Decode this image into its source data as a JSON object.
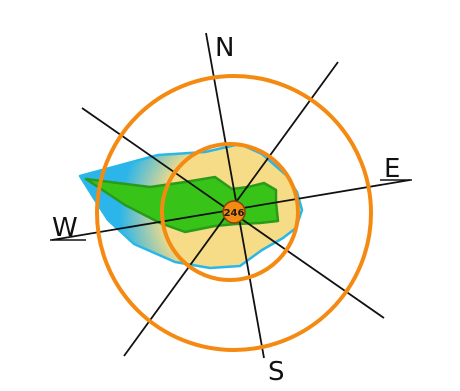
{
  "directions": {
    "north": "N",
    "east": "E",
    "south": "S",
    "west": "W"
  },
  "center_value": "246",
  "colors": {
    "ring": "#f58a12",
    "axis": "#111111",
    "outer_area_stroke": "#2ab7e8",
    "outer_area_edge": "#2bb5ea",
    "outer_area_center": "#f6dc86",
    "inner_area_fill": "#37c318",
    "inner_area_stroke": "#2a9a1a",
    "hub_fill": "#f58a12",
    "hub_stroke": "#8a3f00"
  }
}
